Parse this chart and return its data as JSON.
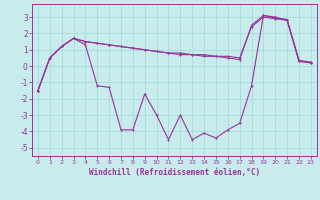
{
  "xlabel": "Windchill (Refroidissement éolien,°C)",
  "bg_color": "#c8ecec",
  "line_color": "#993399",
  "grid_color": "#aadddd",
  "xlim": [
    -0.5,
    23.5
  ],
  "ylim": [
    -5.5,
    3.8
  ],
  "yticks": [
    -5,
    -4,
    -3,
    -2,
    -1,
    0,
    1,
    2,
    3
  ],
  "xticks": [
    0,
    1,
    2,
    3,
    4,
    5,
    6,
    7,
    8,
    9,
    10,
    11,
    12,
    13,
    14,
    15,
    16,
    17,
    18,
    19,
    20,
    21,
    22,
    23
  ],
  "s1_x": [
    0,
    1,
    2,
    3,
    4,
    5,
    6,
    7,
    8,
    9,
    10,
    11,
    12,
    13,
    14,
    15,
    16,
    17,
    18,
    19,
    20,
    21,
    22,
    23
  ],
  "s1_y": [
    -1.5,
    0.5,
    1.2,
    1.7,
    1.3,
    -1.2,
    -1.3,
    -3.9,
    -3.9,
    -1.7,
    -3.0,
    -4.5,
    -3.0,
    -4.5,
    -4.1,
    -4.4,
    -3.9,
    -3.5,
    -1.2,
    3.1,
    3.0,
    2.8,
    0.3,
    0.2
  ],
  "s2_x": [
    0,
    1,
    2,
    3,
    4,
    5,
    6,
    7,
    8,
    9,
    10,
    11,
    12,
    13,
    14,
    15,
    16,
    17,
    18,
    19,
    20,
    21,
    22,
    23
  ],
  "s2_y": [
    -1.5,
    0.5,
    1.2,
    1.7,
    1.5,
    1.4,
    1.3,
    1.2,
    1.1,
    1.0,
    0.9,
    0.8,
    0.8,
    0.7,
    0.7,
    0.6,
    0.6,
    0.5,
    2.4,
    3.0,
    2.9,
    2.8,
    0.3,
    0.2
  ],
  "s3_x": [
    0,
    1,
    2,
    3,
    4,
    5,
    6,
    7,
    8,
    9,
    10,
    11,
    12,
    13,
    14,
    15,
    16,
    17,
    18,
    19,
    20,
    21,
    22,
    23
  ],
  "s3_y": [
    -1.5,
    0.5,
    1.2,
    1.7,
    1.5,
    1.4,
    1.3,
    1.2,
    1.1,
    1.0,
    0.9,
    0.8,
    0.7,
    0.7,
    0.6,
    0.6,
    0.5,
    0.4,
    2.5,
    3.1,
    2.95,
    2.85,
    0.35,
    0.25
  ]
}
